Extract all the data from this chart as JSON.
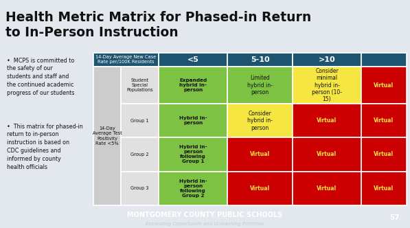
{
  "title_line1": "Health Metric Matrix for Phased-in Return",
  "title_line2": "to In-Person Instruction",
  "title_color": "#111111",
  "title_fontsize": 13.5,
  "bg_color": "#e2e8ed",
  "footer_bg": "#3a607a",
  "footer_text": "MONTGOMERY COUNTY PUBLIC SCHOOLS",
  "footer_sub": "Expanding Opportunity and Unleashing Potential",
  "footer_page": "57",
  "header_bg": "#1e5470",
  "col_headers": [
    "14-Day Average New Case\nRate per/100K Residents",
    "<5",
    "5-10",
    ">10",
    ""
  ],
  "row_label_main": "14-Day\nAverage Test\nPositivity\nRate <5%",
  "row_labels": [
    "Student\nSpecial\nPopulations",
    "Group 1",
    "Group 2",
    "Group 3"
  ],
  "cell_data": [
    [
      "Expanded\nhybrid in-\nperson",
      "Limited\nhybrid in-\nperson",
      "Consider\nminimal\nhybrid in-\nperson (10-\n15)",
      "Virtual"
    ],
    [
      "Hybrid in-\nperson",
      "Consider\nhybrid in-\nperson",
      "Virtual",
      "Virtual"
    ],
    [
      "Hybrid in-\nperson\nfollowing\nGroup 1",
      "Virtual",
      "Virtual",
      "Virtual"
    ],
    [
      "Hybrid in-\nperson\nfollowing\nGroup 2",
      "Virtual",
      "Virtual",
      "Virtual"
    ]
  ],
  "cell_colors": [
    [
      "#7dc242",
      "#7dc242",
      "#f5e642",
      "#cc0000"
    ],
    [
      "#7dc242",
      "#f5e642",
      "#cc0000",
      "#cc0000"
    ],
    [
      "#7dc242",
      "#cc0000",
      "#cc0000",
      "#cc0000"
    ],
    [
      "#7dc242",
      "#cc0000",
      "#cc0000",
      "#cc0000"
    ]
  ],
  "cell_text_colors": [
    [
      "#111111",
      "#111111",
      "#111111",
      "#f5e642"
    ],
    [
      "#111111",
      "#111111",
      "#f5e642",
      "#f5e642"
    ],
    [
      "#111111",
      "#f5e642",
      "#f5e642",
      "#f5e642"
    ],
    [
      "#111111",
      "#f5e642",
      "#f5e642",
      "#f5e642"
    ]
  ],
  "bullet_points": [
    "MCPS is committed to\nthe safety of our\nstudents and staff and\nthe continued academic\nprogress of our students",
    "This matrix for phased-in\nreturn to in-person\ninstruction is based on\nCDC guidelines and\ninformed by county\nhealth officials"
  ]
}
